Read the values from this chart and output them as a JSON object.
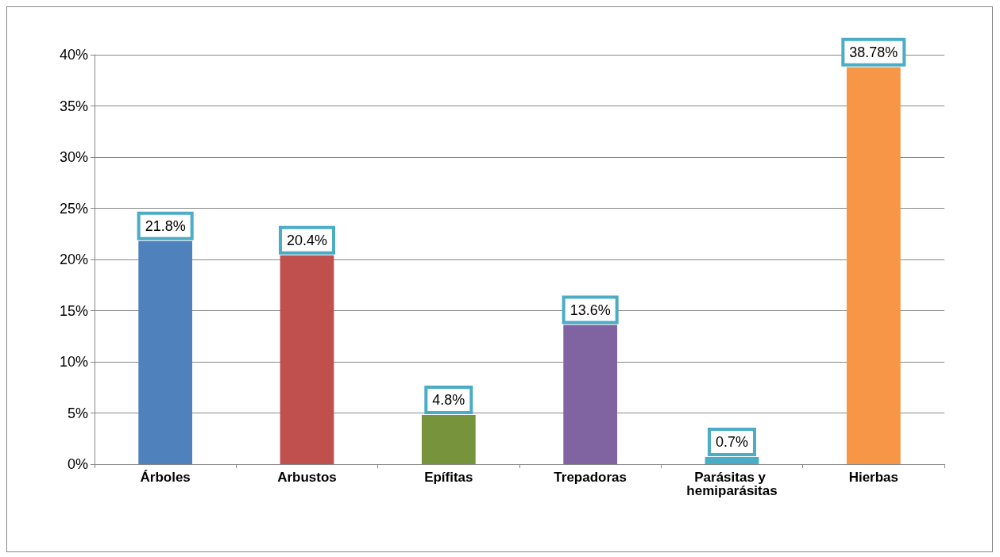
{
  "chart_data": {
    "type": "bar",
    "categories": [
      "Árboles",
      "Arbustos",
      "Epífitas",
      "Trepadoras",
      "Parásitas y hemiparásitas",
      "Hierbas"
    ],
    "values": [
      21.8,
      20.4,
      4.8,
      13.6,
      0.7,
      38.78
    ],
    "colors": [
      "#4f81bd",
      "#c0504d",
      "#77933c",
      "#8064a2",
      "#4bacc6",
      "#f79646"
    ],
    "value_labels": [
      "21.8%",
      "20.4%",
      "4.8%",
      "13.6%",
      "0.7%",
      "38.78%"
    ],
    "ylim": [
      0,
      40
    ],
    "yticks": [
      {
        "value": 0,
        "label": "0%"
      },
      {
        "value": 5,
        "label": "5%"
      },
      {
        "value": 10,
        "label": "10%"
      },
      {
        "value": 15,
        "label": "15%"
      },
      {
        "value": 20,
        "label": "20%"
      },
      {
        "value": 25,
        "label": "25%"
      },
      {
        "value": 30,
        "label": "30%"
      },
      {
        "value": 35,
        "label": "35%"
      },
      {
        "value": 40,
        "label": "40%"
      }
    ],
    "grid": "y"
  }
}
